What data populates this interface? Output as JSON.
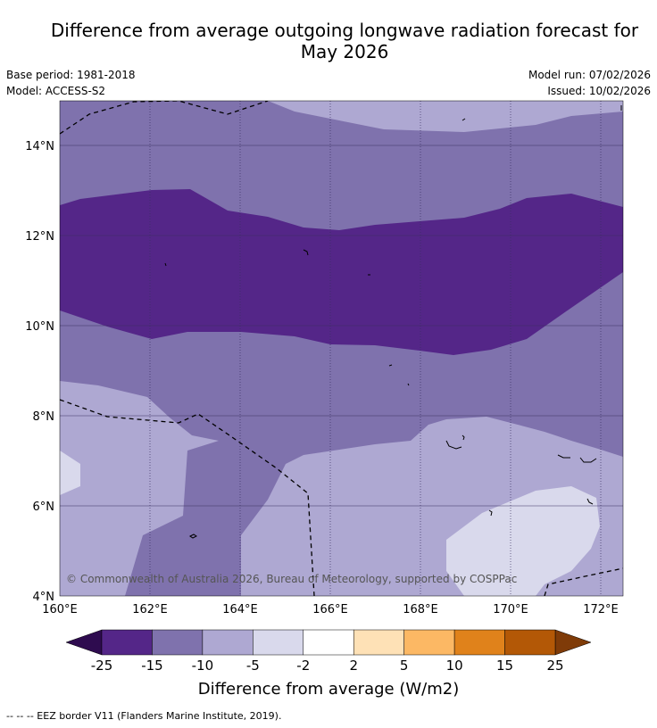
{
  "header": {
    "title_line1": "Difference from average outgoing longwave radiation forecast for",
    "title_line2": "May 2026",
    "base_period": "Base period: 1981-2018",
    "model": "Model: ACCESS-S2",
    "model_run": "Model run: 07/02/2026",
    "issued": "Issued: 10/02/2026"
  },
  "map": {
    "lat_labels": [
      "14°N",
      "12°N",
      "10°N",
      "8°N",
      "6°N",
      "4°N"
    ],
    "lon_labels": [
      "160°E",
      "162°E",
      "164°E",
      "166°E",
      "168°E",
      "170°E",
      "172°E"
    ],
    "credit": "© Commonwealth of Australia 2026, Bureau of Meteorology, supported by COSPPac"
  },
  "colorbar": {
    "title": "Difference from average (W/m2)",
    "ticks": [
      "-25",
      "-15",
      "-10",
      "-5",
      "-2",
      "2",
      "5",
      "10",
      "15",
      "25"
    ],
    "colors": [
      "#542688",
      "#7f72ad",
      "#aea8d2",
      "#d9d9ec",
      "#ffffff",
      "#fee1b6",
      "#fcb864",
      "#e0821b",
      "#b35806"
    ],
    "low_color": "#2e0b4f",
    "high_color": "#7f3b08"
  },
  "footer": {
    "legend": "--  --  -- EEZ border V11 (Flanders Marine Institute, 2019)."
  }
}
